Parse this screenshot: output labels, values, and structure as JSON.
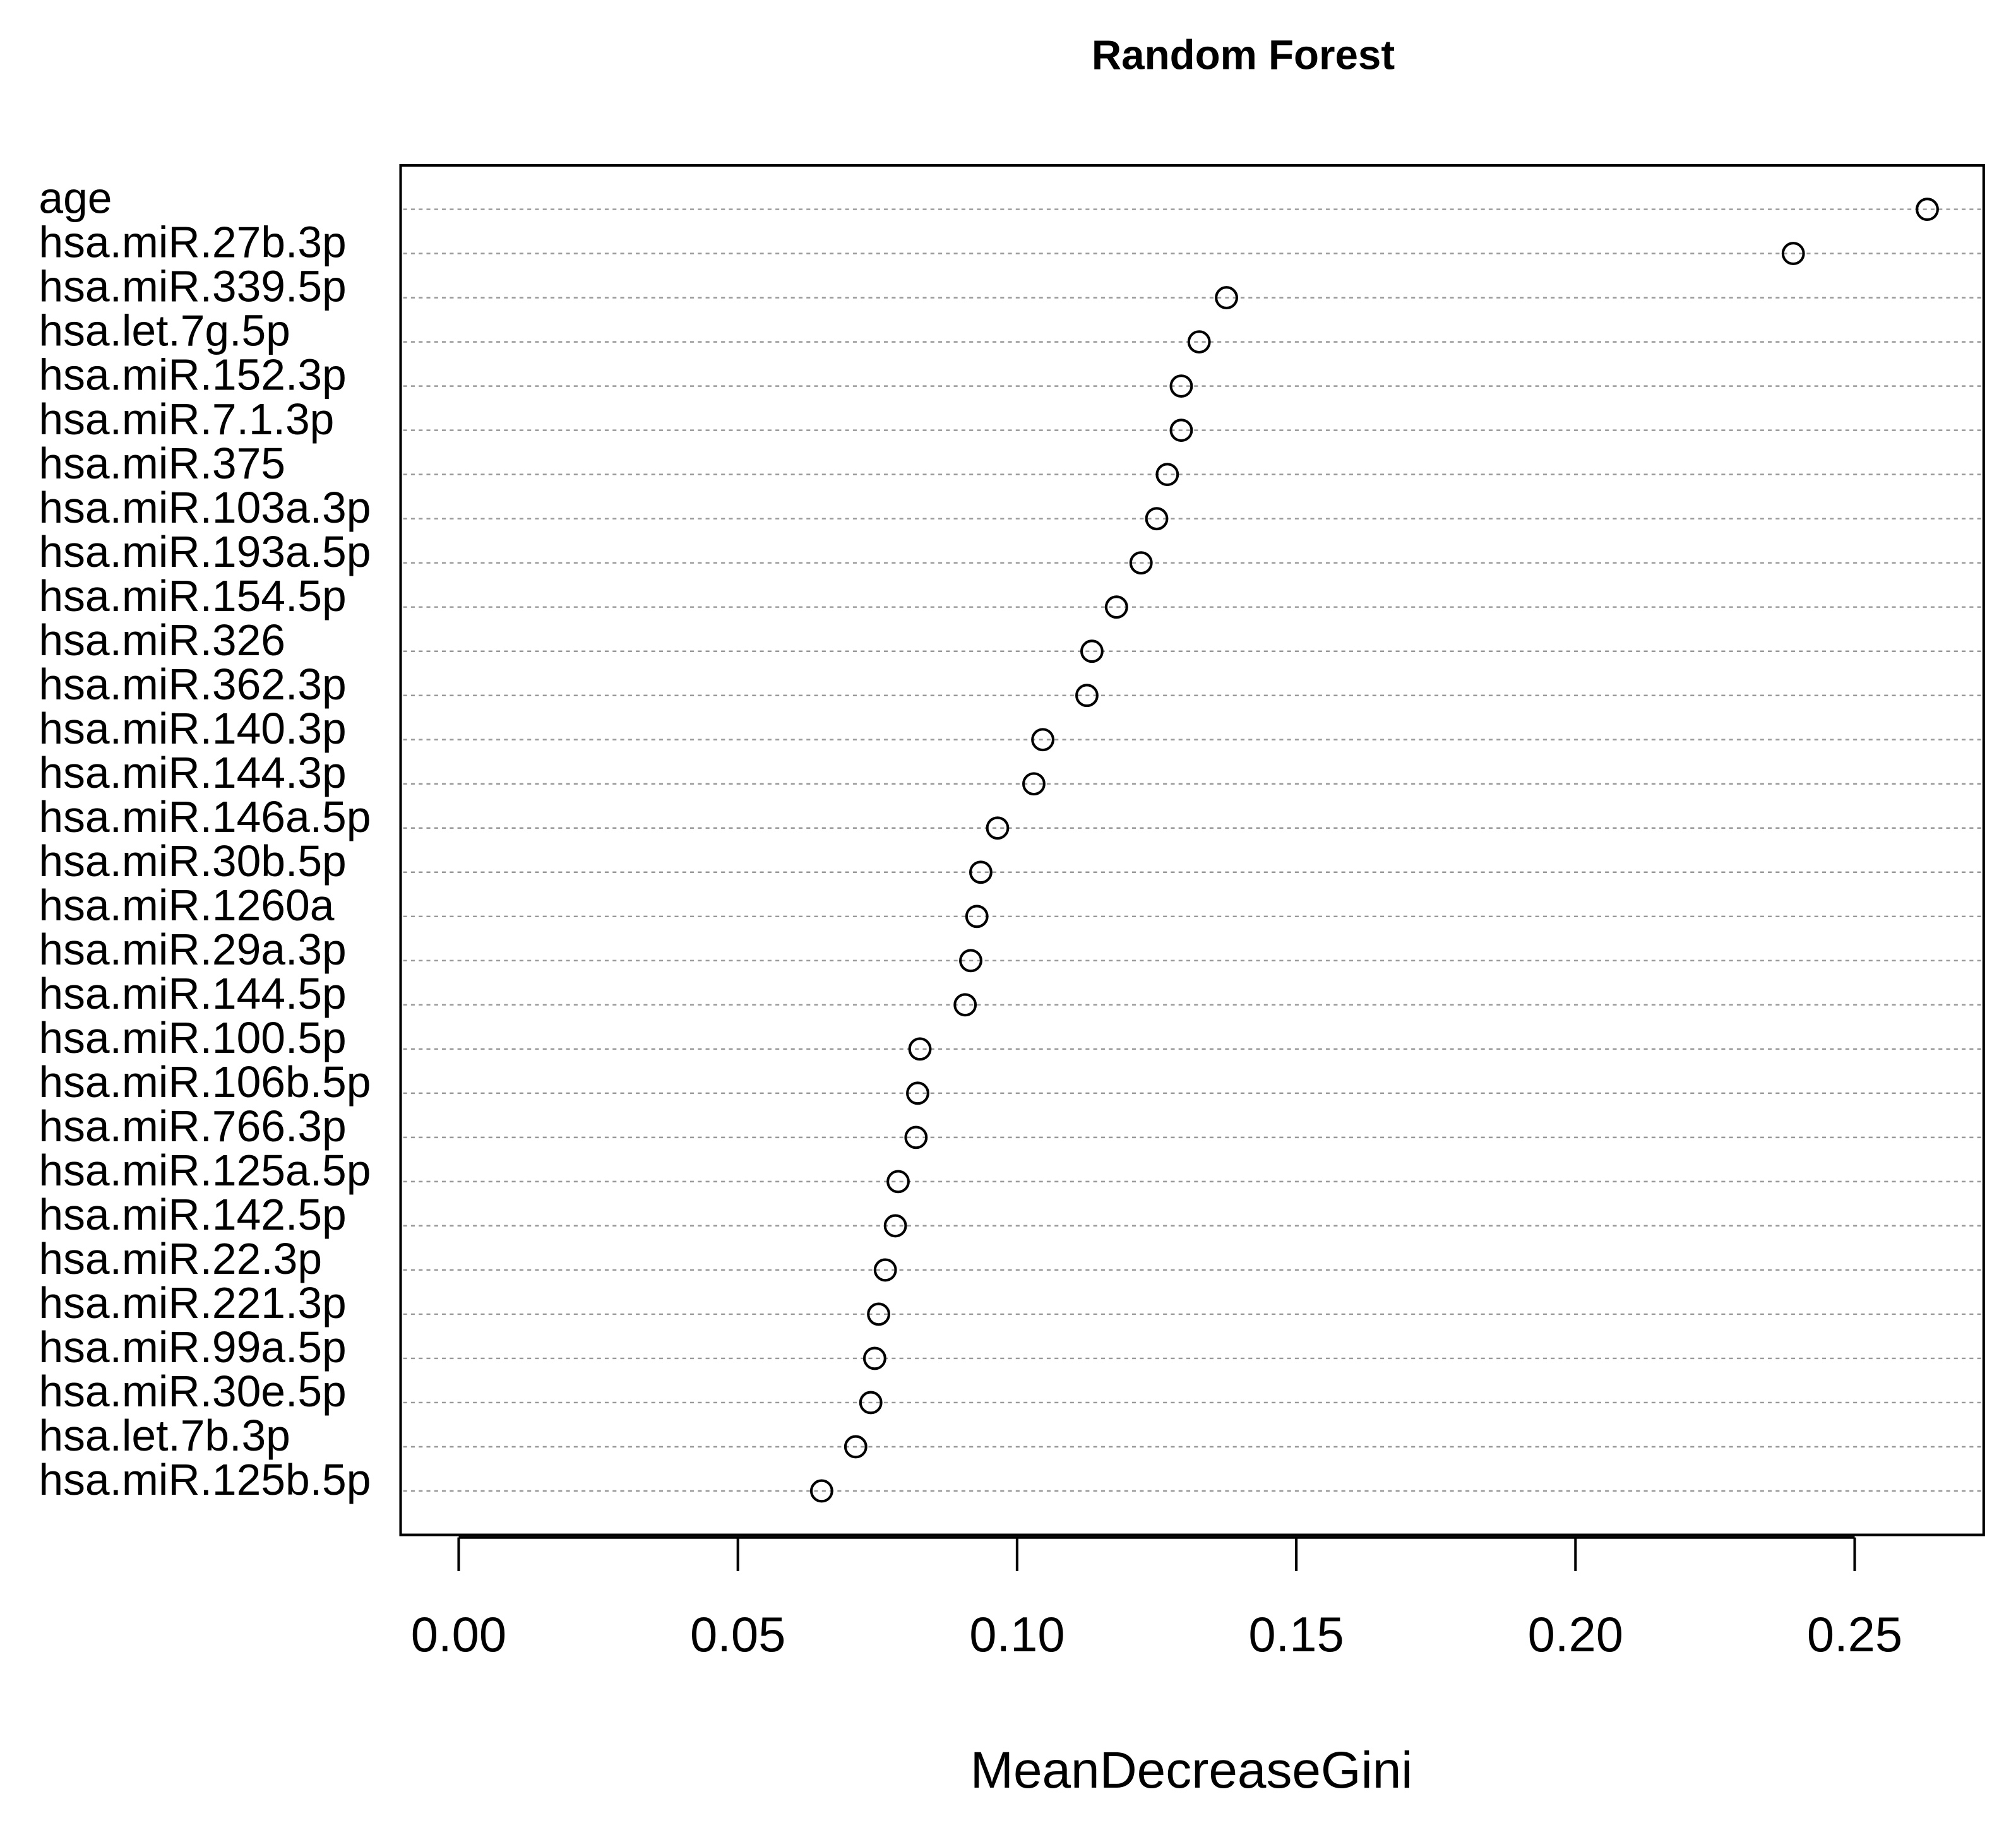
{
  "chart_data": {
    "type": "dot",
    "title": "Random Forest",
    "x_label": "MeanDecreaseGini",
    "categories": [
      "age",
      "hsa.miR.27b.3p",
      "hsa.miR.339.5p",
      "hsa.let.7g.5p",
      "hsa.miR.152.3p",
      "hsa.miR.7.1.3p",
      "hsa.miR.375",
      "hsa.miR.103a.3p",
      "hsa.miR.193a.5p",
      "hsa.miR.154.5p",
      "hsa.miR.326",
      "hsa.miR.362.3p",
      "hsa.miR.140.3p",
      "hsa.miR.144.3p",
      "hsa.miR.146a.5p",
      "hsa.miR.30b.5p",
      "hsa.miR.1260a",
      "hsa.miR.29a.3p",
      "hsa.miR.144.5p",
      "hsa.miR.100.5p",
      "hsa.miR.106b.5p",
      "hsa.miR.766.3p",
      "hsa.miR.125a.5p",
      "hsa.miR.142.5p",
      "hsa.miR.22.3p",
      "hsa.miR.221.3p",
      "hsa.miR.99a.5p",
      "hsa.miR.30e.5p",
      "hsa.let.7b.3p",
      "hsa.miR.125b.5p"
    ],
    "values": [
      0.263,
      0.239,
      0.1375,
      0.1326,
      0.1294,
      0.1294,
      0.1269,
      0.125,
      0.1222,
      0.1178,
      0.1134,
      0.1125,
      0.1046,
      0.103,
      0.0965,
      0.0935,
      0.0928,
      0.0917,
      0.0907,
      0.0826,
      0.0822,
      0.0819,
      0.0787,
      0.0782,
      0.0764,
      0.0752,
      0.0745,
      0.0738,
      0.0711,
      0.065
    ],
    "color": "#000000",
    "xlim": [
      -0.0104,
      0.2731
    ],
    "xticks": [
      {
        "value": 0,
        "label": "0.00"
      },
      {
        "value": 0.05,
        "label": "0.05"
      },
      {
        "value": 0.1,
        "label": "0.10"
      },
      {
        "value": 0.15,
        "label": "0.15"
      },
      {
        "value": 0.2,
        "label": "0.20"
      },
      {
        "value": 0.25,
        "label": "0.25"
      }
    ],
    "grid": true
  }
}
